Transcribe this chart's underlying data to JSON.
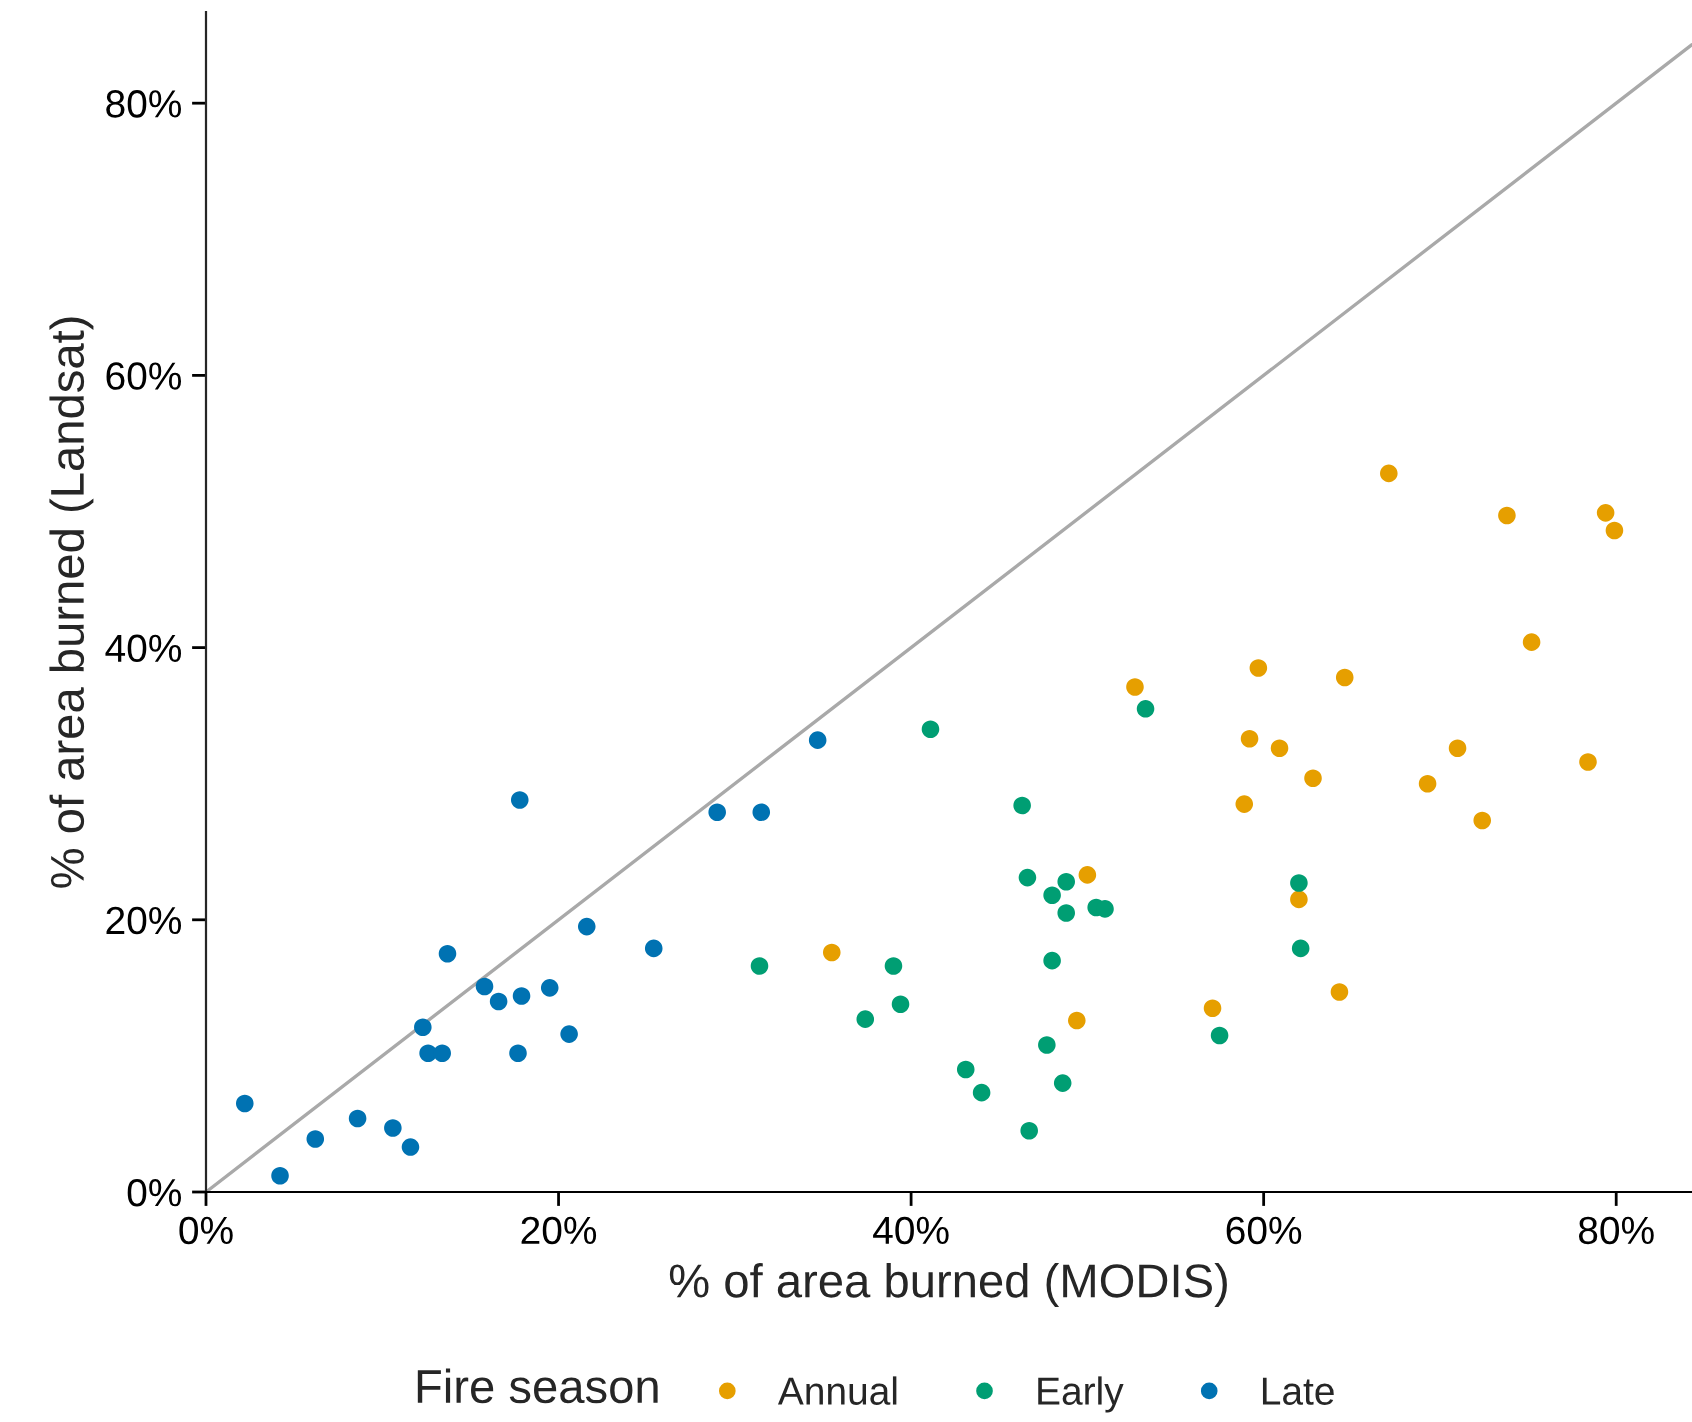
{
  "chart_data": {
    "type": "scatter",
    "xlabel": "% of area burned (MODIS)",
    "ylabel": "% of area burned (Landsat)",
    "legend_title": "Fire season",
    "legend": "bottom",
    "grid": false,
    "marker": "circle",
    "xlim": [
      0,
      84.3
    ],
    "ylim": [
      0,
      86.7
    ],
    "xticks": [
      {
        "value": 0,
        "label": "0%"
      },
      {
        "value": 20,
        "label": "20%"
      },
      {
        "value": 40,
        "label": "40%"
      },
      {
        "value": 60,
        "label": "60%"
      },
      {
        "value": 80,
        "label": "80%"
      }
    ],
    "yticks": [
      {
        "value": 0,
        "label": "0%"
      },
      {
        "value": 20,
        "label": "20%"
      },
      {
        "value": 40,
        "label": "40%"
      },
      {
        "value": 60,
        "label": "60%"
      },
      {
        "value": 80,
        "label": "80%"
      }
    ],
    "series": [
      {
        "type": "line",
        "color": "#a9a9a9",
        "marker": "none",
        "x": [
          0,
          84.3
        ],
        "values": [
          0,
          84.3
        ]
      },
      {
        "name": "Annual",
        "color": "#e69f00",
        "x": [
          35.5,
          49.4,
          50.0,
          52.7,
          57.1,
          67.1,
          73.8,
          79.4,
          79.9,
          75.2,
          59.7,
          64.6,
          59.2,
          60.9,
          62.8,
          58.9,
          71.0,
          69.3,
          78.4,
          72.4,
          62.0,
          64.3
        ],
        "values": [
          17.6,
          12.6,
          23.3,
          37.1,
          13.5,
          52.8,
          49.7,
          49.9,
          48.6,
          40.4,
          38.5,
          37.8,
          33.3,
          32.6,
          30.4,
          28.5,
          32.6,
          30.0,
          31.6,
          27.3,
          21.5,
          14.7
        ]
      },
      {
        "name": "Early",
        "color": "#009e73",
        "x": [
          31.4,
          37.4,
          39.0,
          39.4,
          41.1,
          43.1,
          44.0,
          46.3,
          46.6,
          46.7,
          47.7,
          48.0,
          48.0,
          48.6,
          48.8,
          48.8,
          50.5,
          51.0,
          53.3,
          57.5,
          62.0,
          62.1
        ],
        "values": [
          16.6,
          12.7,
          16.6,
          13.8,
          34.0,
          9.0,
          7.3,
          28.4,
          23.1,
          4.5,
          10.8,
          21.8,
          17.0,
          8.0,
          22.8,
          20.5,
          20.9,
          20.8,
          35.5,
          11.5,
          22.7,
          17.9
        ]
      },
      {
        "name": "Late",
        "color": "#0072b2",
        "x": [
          2.2,
          4.2,
          6.2,
          8.6,
          10.6,
          11.6,
          12.3,
          12.6,
          13.4,
          13.7,
          15.8,
          16.6,
          17.7,
          17.8,
          17.9,
          19.5,
          20.6,
          21.6,
          25.4,
          29.0,
          31.5,
          34.7
        ],
        "values": [
          6.5,
          1.2,
          3.9,
          5.4,
          4.7,
          3.3,
          12.1,
          10.2,
          10.2,
          17.5,
          15.1,
          14.0,
          10.2,
          28.8,
          14.4,
          15.0,
          11.6,
          19.5,
          17.9,
          27.9,
          27.9,
          33.2
        ]
      }
    ]
  }
}
